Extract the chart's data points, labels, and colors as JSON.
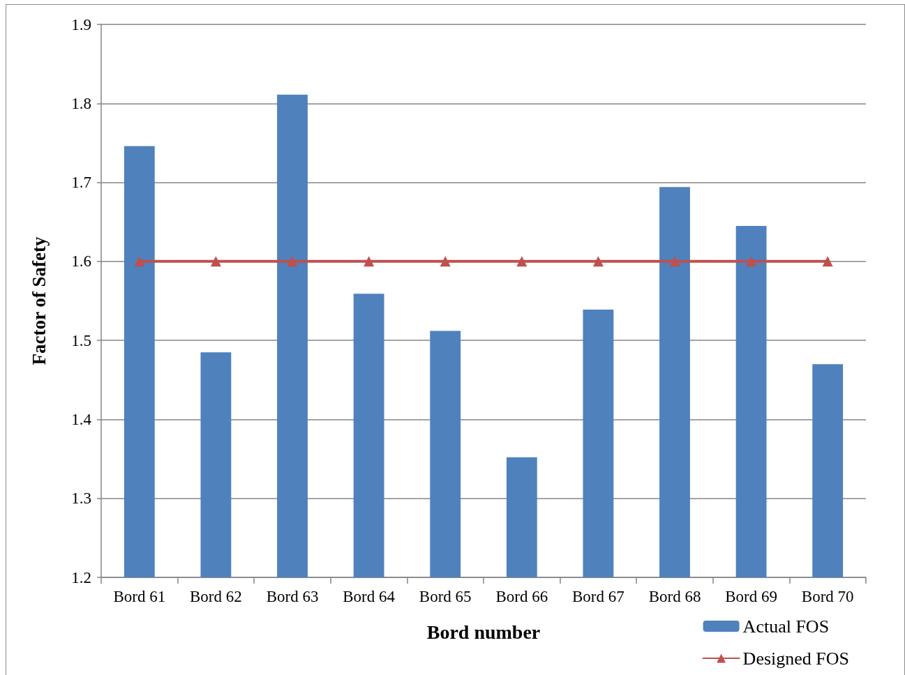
{
  "chart_data": {
    "type": "bar",
    "xlabel": "Bord number",
    "ylabel": "Factor of Safety",
    "categories": [
      "Bord 61",
      "Bord 62",
      "Bord 63",
      "Bord 64",
      "Bord 65",
      "Bord 66",
      "Bord 67",
      "Bord 68",
      "Bord 69",
      "Bord 70"
    ],
    "series": [
      {
        "name": "Actual FOS",
        "color": "#4f81bd",
        "values": [
          1.746,
          1.485,
          1.811,
          1.559,
          1.512,
          1.352,
          1.539,
          1.694,
          1.645,
          1.47
        ]
      },
      {
        "name": "Designed FOS",
        "type": "line",
        "color": "#c0504d",
        "values": [
          1.6,
          1.6,
          1.6,
          1.6,
          1.6,
          1.6,
          1.6,
          1.6,
          1.6,
          1.6
        ]
      }
    ],
    "ylim": [
      1.2,
      1.9
    ],
    "yticks": [
      1.2,
      1.3,
      1.4,
      1.5,
      1.6,
      1.7,
      1.8,
      1.9
    ],
    "grid": "y",
    "legend": "bottom right",
    "marker": "triangle"
  }
}
